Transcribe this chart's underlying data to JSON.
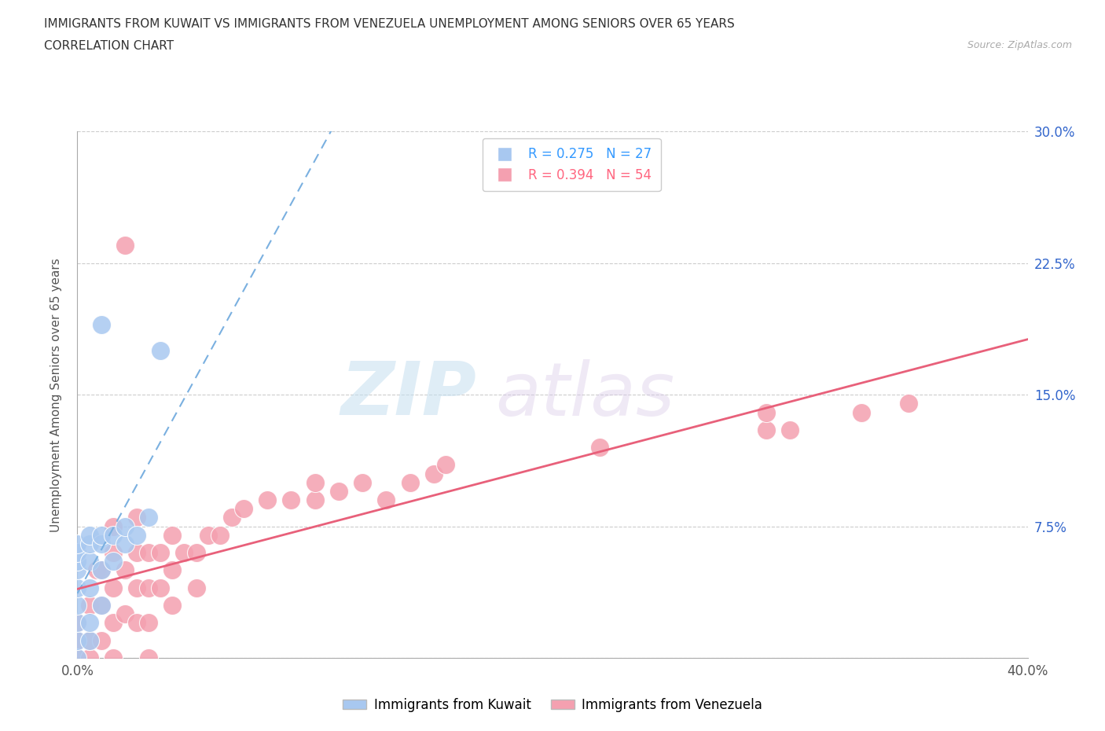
{
  "title_line1": "IMMIGRANTS FROM KUWAIT VS IMMIGRANTS FROM VENEZUELA UNEMPLOYMENT AMONG SENIORS OVER 65 YEARS",
  "title_line2": "CORRELATION CHART",
  "source_text": "Source: ZipAtlas.com",
  "ylabel": "Unemployment Among Seniors over 65 years",
  "xlim": [
    0.0,
    0.4
  ],
  "ylim": [
    0.0,
    0.3
  ],
  "xticks": [
    0.0,
    0.05,
    0.1,
    0.15,
    0.2,
    0.25,
    0.3,
    0.35,
    0.4
  ],
  "yticks": [
    0.0,
    0.075,
    0.15,
    0.225,
    0.3
  ],
  "xtick_labels": [
    "0.0%",
    "",
    "",
    "",
    "",
    "",
    "",
    "",
    "40.0%"
  ],
  "ytick_labels_left": [
    "",
    "",
    "",
    "",
    ""
  ],
  "ytick_labels_right": [
    "",
    "7.5%",
    "15.0%",
    "22.5%",
    "30.0%"
  ],
  "kuwait_color": "#a8c8f0",
  "venezuela_color": "#f4a0b0",
  "kuwait_line_color": "#7ab0e0",
  "venezuela_line_color": "#e8607a",
  "watermark_zip": "ZIP",
  "watermark_atlas": "atlas",
  "kuwait_x": [
    0.0,
    0.0,
    0.0,
    0.0,
    0.0,
    0.0,
    0.0,
    0.0,
    0.0,
    0.005,
    0.005,
    0.005,
    0.005,
    0.005,
    0.005,
    0.01,
    0.01,
    0.01,
    0.01,
    0.01,
    0.015,
    0.015,
    0.02,
    0.02,
    0.025,
    0.03,
    0.035
  ],
  "kuwait_y": [
    0.0,
    0.01,
    0.02,
    0.03,
    0.04,
    0.05,
    0.055,
    0.06,
    0.065,
    0.01,
    0.02,
    0.04,
    0.055,
    0.065,
    0.07,
    0.03,
    0.05,
    0.065,
    0.07,
    0.19,
    0.055,
    0.07,
    0.065,
    0.075,
    0.07,
    0.08,
    0.175
  ],
  "venezuela_x": [
    0.0,
    0.0,
    0.0,
    0.005,
    0.005,
    0.005,
    0.008,
    0.01,
    0.01,
    0.01,
    0.015,
    0.015,
    0.015,
    0.015,
    0.015,
    0.02,
    0.02,
    0.02,
    0.025,
    0.025,
    0.025,
    0.025,
    0.03,
    0.03,
    0.03,
    0.03,
    0.035,
    0.035,
    0.04,
    0.04,
    0.04,
    0.045,
    0.05,
    0.05,
    0.055,
    0.06,
    0.065,
    0.07,
    0.08,
    0.09,
    0.1,
    0.1,
    0.11,
    0.12,
    0.13,
    0.14,
    0.15,
    0.155,
    0.22,
    0.29,
    0.29,
    0.3,
    0.33,
    0.35
  ],
  "venezuela_y": [
    0.0,
    0.01,
    0.02,
    0.0,
    0.01,
    0.03,
    0.05,
    0.01,
    0.03,
    0.05,
    0.0,
    0.02,
    0.04,
    0.06,
    0.075,
    0.025,
    0.05,
    0.235,
    0.02,
    0.04,
    0.06,
    0.08,
    0.0,
    0.02,
    0.04,
    0.06,
    0.04,
    0.06,
    0.03,
    0.05,
    0.07,
    0.06,
    0.04,
    0.06,
    0.07,
    0.07,
    0.08,
    0.085,
    0.09,
    0.09,
    0.09,
    0.1,
    0.095,
    0.1,
    0.09,
    0.1,
    0.105,
    0.11,
    0.12,
    0.13,
    0.14,
    0.13,
    0.14,
    0.145
  ]
}
